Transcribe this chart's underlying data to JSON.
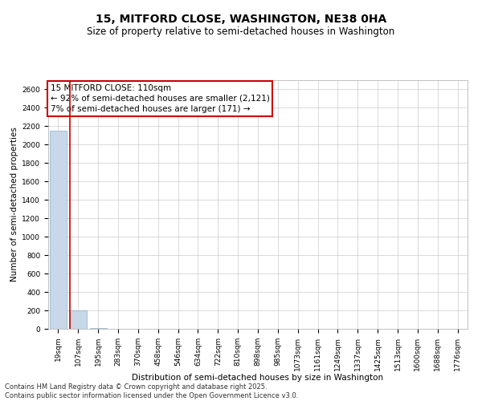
{
  "title": "15, MITFORD CLOSE, WASHINGTON, NE38 0HA",
  "subtitle": "Size of property relative to semi-detached houses in Washington",
  "xlabel": "Distribution of semi-detached houses by size in Washington",
  "ylabel": "Number of semi-detached properties",
  "categories": [
    "19sqm",
    "107sqm",
    "195sqm",
    "283sqm",
    "370sqm",
    "458sqm",
    "546sqm",
    "634sqm",
    "722sqm",
    "810sqm",
    "898sqm",
    "985sqm",
    "1073sqm",
    "1161sqm",
    "1249sqm",
    "1337sqm",
    "1425sqm",
    "1513sqm",
    "1600sqm",
    "1688sqm",
    "1776sqm"
  ],
  "values": [
    2150,
    200,
    5,
    3,
    2,
    1,
    1,
    1,
    1,
    1,
    1,
    1,
    1,
    1,
    1,
    1,
    1,
    1,
    1,
    1,
    1
  ],
  "bar_color": "#c8d8e8",
  "bar_edge_color": "#8ab0c8",
  "subject_line_color": "#cc0000",
  "ylim": [
    0,
    2700
  ],
  "yticks": [
    0,
    200,
    400,
    600,
    800,
    1000,
    1200,
    1400,
    1600,
    1800,
    2000,
    2200,
    2400,
    2600
  ],
  "annotation_title": "15 MITFORD CLOSE: 110sqm",
  "annotation_line1": "← 92% of semi-detached houses are smaller (2,121)",
  "annotation_line2": "7% of semi-detached houses are larger (171) →",
  "annotation_box_color": "#cc0000",
  "footer_line1": "Contains HM Land Registry data © Crown copyright and database right 2025.",
  "footer_line2": "Contains public sector information licensed under the Open Government Licence v3.0.",
  "background_color": "#ffffff",
  "grid_color": "#cccccc",
  "title_fontsize": 10,
  "subtitle_fontsize": 8.5,
  "axis_label_fontsize": 7.5,
  "tick_fontsize": 6.5,
  "annotation_fontsize": 7.5,
  "footer_fontsize": 6
}
